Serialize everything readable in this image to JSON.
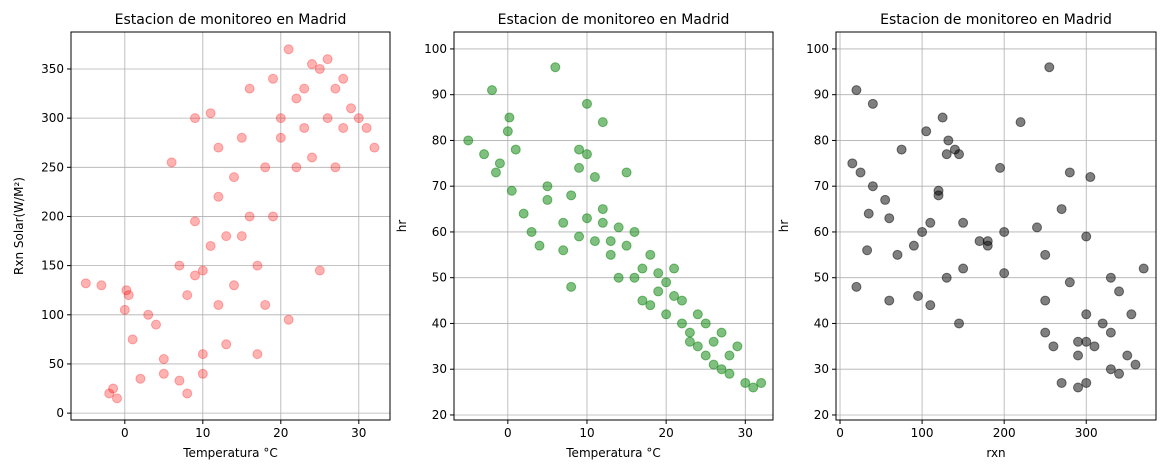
{
  "chart_data": [
    {
      "type": "scatter",
      "title": "Estacion de monitoreo en Madrid",
      "xlabel": "Temperatura °C",
      "ylabel": "Rxn Solar(W/M²)",
      "color": "#ff0000",
      "alpha": 0.3,
      "grid": true,
      "x": [
        -5,
        -3,
        -2,
        -1.5,
        -1,
        0,
        0.2,
        0.5,
        1,
        2,
        3,
        4,
        5,
        5,
        6,
        7,
        7,
        8,
        8,
        9,
        9,
        9,
        10,
        10,
        10,
        11,
        11,
        12,
        12,
        12,
        13,
        13,
        14,
        14,
        15,
        15,
        16,
        16,
        17,
        17,
        18,
        18,
        19,
        19,
        20,
        20,
        21,
        21,
        22,
        22,
        23,
        23,
        24,
        24,
        25,
        25,
        26,
        26,
        27,
        27,
        28,
        28,
        29,
        30,
        31,
        32
      ],
      "values": [
        132,
        130,
        20,
        25,
        15,
        105,
        125,
        120,
        75,
        35,
        100,
        90,
        55,
        40,
        255,
        33,
        150,
        120,
        20,
        140,
        195,
        300,
        145,
        40,
        60,
        170,
        305,
        270,
        220,
        110,
        180,
        70,
        240,
        130,
        280,
        180,
        330,
        200,
        150,
        60,
        250,
        110,
        340,
        200,
        300,
        280,
        370,
        95,
        320,
        250,
        330,
        290,
        355,
        260,
        145,
        350,
        300,
        360,
        330,
        250,
        340,
        290,
        310,
        300,
        290,
        270
      ],
      "xlim": [
        -6.9,
        34
      ],
      "ylim": [
        -7,
        387.6
      ],
      "xticks": [
        0,
        10,
        20,
        30
      ],
      "yticks": [
        0,
        50,
        100,
        150,
        200,
        250,
        300,
        350
      ]
    },
    {
      "type": "scatter",
      "title": "Estacion de monitoreo en Madrid",
      "xlabel": "Temperatura °C",
      "ylabel": "hr",
      "color": "#008000",
      "alpha": 0.5,
      "grid": true,
      "x": [
        -5,
        -3,
        -2,
        -1.5,
        -1,
        0,
        0.2,
        0.5,
        1,
        2,
        3,
        4,
        5,
        5,
        6,
        7,
        7,
        8,
        8,
        9,
        9,
        9,
        10,
        10,
        10,
        11,
        11,
        12,
        12,
        12,
        13,
        13,
        14,
        14,
        15,
        15,
        16,
        16,
        17,
        17,
        18,
        18,
        19,
        19,
        20,
        20,
        21,
        21,
        22,
        22,
        23,
        23,
        24,
        24,
        25,
        25,
        26,
        26,
        27,
        27,
        28,
        28,
        29,
        30,
        31,
        32
      ],
      "values": [
        80,
        77,
        91,
        73,
        75,
        82,
        85,
        69,
        78,
        64,
        60,
        57,
        67,
        70,
        96,
        56,
        62,
        68,
        48,
        78,
        74,
        59,
        77,
        88,
        63,
        58,
        72,
        65,
        84,
        62,
        58,
        55,
        61,
        50,
        73,
        57,
        50,
        60,
        52,
        45,
        55,
        44,
        47,
        51,
        42,
        49,
        52,
        46,
        40,
        45,
        38,
        36,
        42,
        35,
        40,
        33,
        36,
        31,
        30,
        38,
        29,
        33,
        35,
        27,
        26,
        27
      ],
      "xlim": [
        -6.8,
        33.5
      ],
      "ylim": [
        18.9,
        103.7
      ],
      "xticks": [
        0,
        10,
        20,
        30
      ],
      "yticks": [
        20,
        30,
        40,
        50,
        60,
        70,
        80,
        90,
        100
      ]
    },
    {
      "type": "scatter",
      "title": "Estacion de monitoreo en Madrid",
      "xlabel": "rxn",
      "ylabel": "hr",
      "color": "#000000",
      "alpha": 0.5,
      "grid": true,
      "x": [
        132,
        130,
        20,
        25,
        15,
        105,
        125,
        120,
        75,
        35,
        100,
        90,
        55,
        40,
        255,
        33,
        150,
        120,
        20,
        140,
        195,
        300,
        145,
        40,
        60,
        170,
        305,
        270,
        220,
        110,
        180,
        70,
        240,
        130,
        280,
        180,
        330,
        200,
        150,
        60,
        250,
        110,
        340,
        200,
        300,
        280,
        370,
        95,
        320,
        250,
        330,
        290,
        355,
        260,
        145,
        350,
        300,
        360,
        330,
        250,
        340,
        290,
        310,
        300,
        290,
        270
      ],
      "values": [
        80,
        77,
        91,
        73,
        75,
        82,
        85,
        69,
        78,
        64,
        60,
        57,
        67,
        70,
        96,
        56,
        62,
        68,
        48,
        78,
        74,
        59,
        77,
        88,
        63,
        58,
        72,
        65,
        84,
        62,
        58,
        55,
        61,
        50,
        73,
        57,
        50,
        60,
        52,
        45,
        55,
        44,
        47,
        51,
        42,
        49,
        52,
        46,
        40,
        45,
        38,
        36,
        42,
        35,
        40,
        33,
        36,
        31,
        30,
        38,
        29,
        33,
        35,
        27,
        26,
        27
      ],
      "xlim": [
        -4.9,
        385
      ],
      "ylim": [
        18.9,
        103.7
      ],
      "xticks": [
        0,
        100,
        200,
        300
      ],
      "yticks": [
        20,
        30,
        40,
        50,
        60,
        70,
        80,
        90,
        100
      ]
    }
  ]
}
